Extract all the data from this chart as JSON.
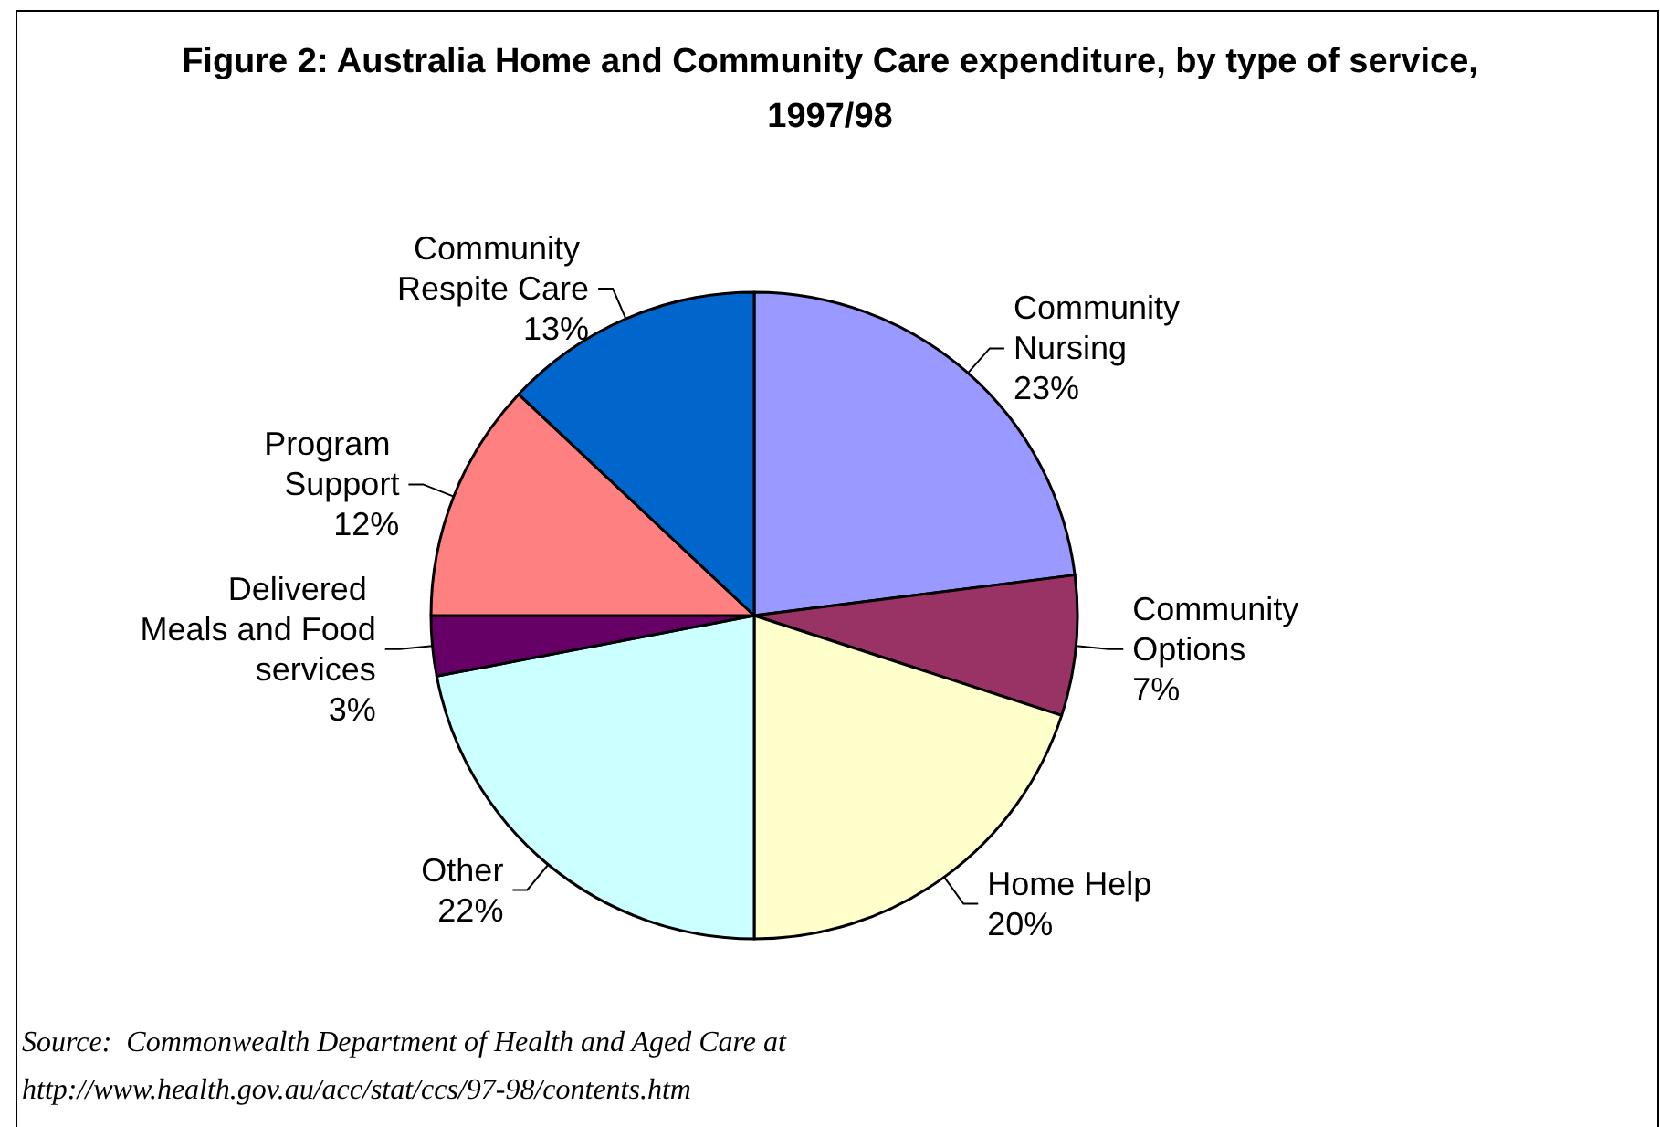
{
  "chart_data": {
    "type": "pie",
    "title": "Figure 2: Australia Home and Community Care expenditure, by type of service,1997/98",
    "categories": [
      "Community Nursing",
      "Community Options",
      "Home Help",
      "Other",
      "Delivered Meals and Food services",
      "Program Support",
      "Community Respite Care"
    ],
    "values": [
      23,
      7,
      20,
      22,
      3,
      12,
      13
    ],
    "value_labels": [
      "23%",
      "7%",
      "20%",
      "22%",
      "3%",
      "12%",
      "13%"
    ],
    "colors": [
      "#9999ff",
      "#993366",
      "#ffffcc",
      "#ccffff",
      "#660066",
      "#ff8080",
      "#0066cc"
    ],
    "legend": false,
    "annotations": [
      "Source:  Commonwealth Department of Health and Aged Care at",
      "http://www.health.gov.au/acc/stat/ccs/97-98/contents.htm"
    ]
  }
}
